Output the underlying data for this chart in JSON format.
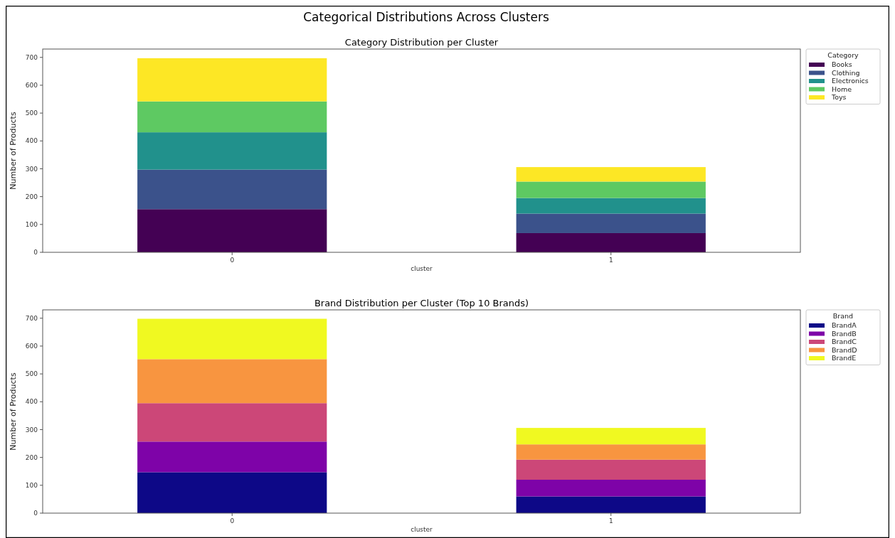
{
  "chart_data": [
    {
      "type": "bar",
      "title": "Category Distribution per Cluster",
      "annotations": [
        "Categorical Distributions Across Clusters"
      ],
      "xlabel": "cluster",
      "ylabel": "Number of Products",
      "legend_title": "Category",
      "categories": [
        "0",
        "1"
      ],
      "stacked": true,
      "legend": "top right",
      "grid": false,
      "ylim": [
        0,
        730
      ],
      "yticks": [
        0,
        100,
        200,
        300,
        400,
        500,
        600,
        700
      ],
      "series": [
        {
          "name": "Books",
          "color": "#440154",
          "values": [
            155,
            69
          ]
        },
        {
          "name": "Clothing",
          "color": "#3b528b",
          "values": [
            142,
            70
          ]
        },
        {
          "name": "Electronics",
          "color": "#21918c",
          "values": [
            134,
            56
          ]
        },
        {
          "name": "Home",
          "color": "#5ec962",
          "values": [
            111,
            59
          ]
        },
        {
          "name": "Toys",
          "color": "#fde725",
          "values": [
            155,
            52
          ]
        }
      ]
    },
    {
      "type": "bar",
      "title": "Brand Distribution per Cluster (Top 10 Brands)",
      "xlabel": "cluster",
      "ylabel": "Number of Products",
      "legend_title": "Brand",
      "categories": [
        "0",
        "1"
      ],
      "stacked": true,
      "legend": "top right",
      "grid": false,
      "ylim": [
        0,
        730
      ],
      "yticks": [
        0,
        100,
        200,
        300,
        400,
        500,
        600,
        700
      ],
      "series": [
        {
          "name": "BrandA",
          "color": "#0d0887",
          "values": [
            147,
            60
          ]
        },
        {
          "name": "BrandB",
          "color": "#7e03a8",
          "values": [
            110,
            60
          ]
        },
        {
          "name": "BrandC",
          "color": "#cc4778",
          "values": [
            138,
            72
          ]
        },
        {
          "name": "BrandD",
          "color": "#f89540",
          "values": [
            158,
            55
          ]
        },
        {
          "name": "BrandE",
          "color": "#f0f921",
          "values": [
            145,
            59
          ]
        }
      ]
    }
  ]
}
